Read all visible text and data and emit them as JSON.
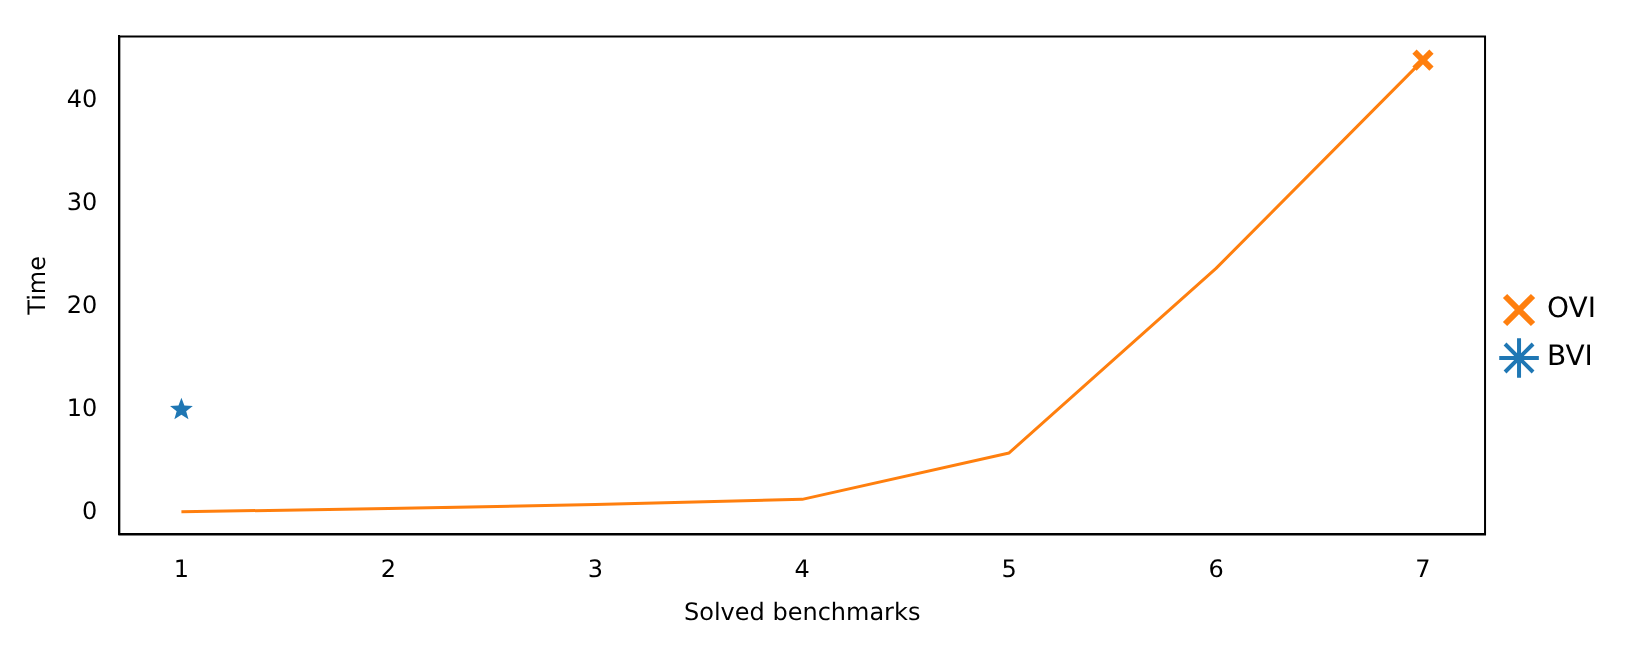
{
  "chart_data": {
    "type": "line",
    "xlabel": "Solved benchmarks",
    "ylabel": "Time",
    "x": [
      1,
      2,
      3,
      4,
      5,
      6,
      7
    ],
    "series": [
      {
        "type": "line",
        "color": "#ff7f0e",
        "values": [
          0.1,
          0.4,
          0.8,
          1.3,
          5.8,
          23.7,
          43.9
        ],
        "marker": "none"
      },
      {
        "type": "scatter",
        "name": "OVI",
        "color": "#ff7f0e",
        "x": [
          7
        ],
        "values": [
          43.9
        ],
        "marker": "cross"
      },
      {
        "type": "scatter",
        "name": "BVI",
        "color": "#1f77b4",
        "x": [
          1
        ],
        "values": [
          10
        ],
        "marker": "star"
      }
    ],
    "xlim": [
      0.7,
      7.3
    ],
    "xticks": [
      1,
      2,
      3,
      4,
      5,
      6,
      7
    ],
    "ylim": [
      -2.1,
      46.2
    ],
    "yticks": [
      0,
      10,
      20,
      30,
      40
    ],
    "grid": false,
    "legend": "right"
  }
}
